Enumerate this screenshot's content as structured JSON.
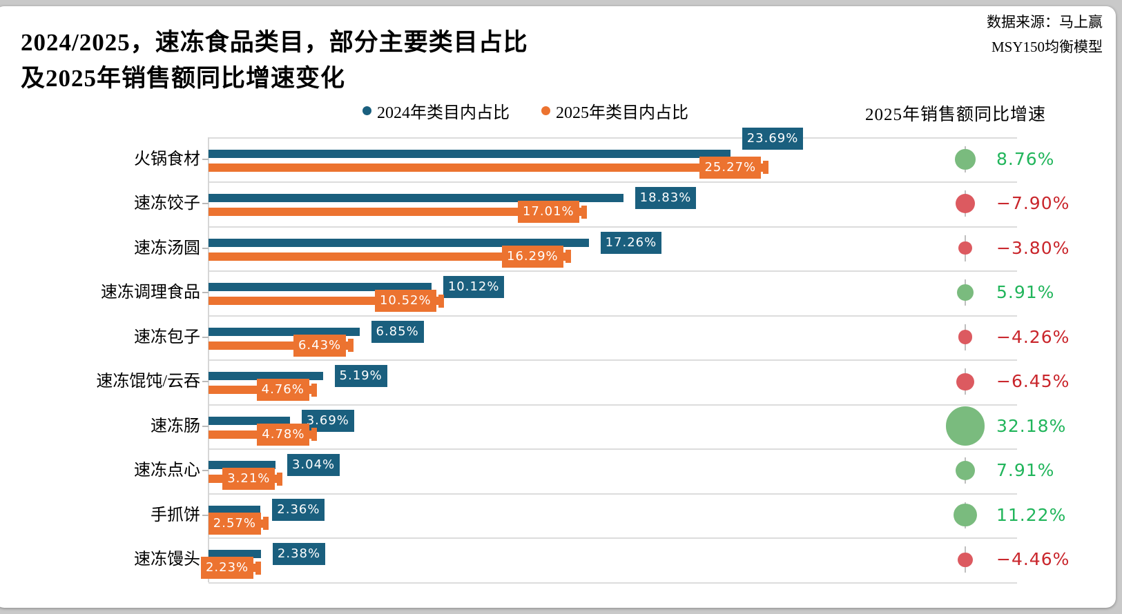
{
  "page": {
    "background": "#c9c9c9",
    "card_background": "#ffffff"
  },
  "header": {
    "title_line1": "2024/2025，速冻食品类目，部分主要类目占比",
    "title_line2": "及2025年销售额同比增速变化",
    "source_line1": "数据来源：马上赢",
    "source_line2": "MSY150均衡模型"
  },
  "legend": {
    "items": [
      {
        "label": "2024年类目内占比",
        "color": "#1a5f7e"
      },
      {
        "label": "2025年类目内占比",
        "color": "#ec7330"
      }
    ]
  },
  "growth_header": "2025年销售额同比增速",
  "colors": {
    "bar_2024": "#1a5f7e",
    "bar_2025": "#ec7330",
    "growth_positive_text": "#21b55b",
    "growth_negative_text": "#c9252b",
    "growth_positive_circle": "#7abb7e",
    "growth_negative_circle": "#dc5a60",
    "gridline": "#dcdcdc"
  },
  "chart_data": {
    "type": "bar",
    "orientation": "horizontal",
    "title": "2024/2025，速冻食品类目，部分主要类目占比及2025年销售额同比增速变化",
    "categories": [
      "火锅食材",
      "速冻饺子",
      "速冻汤圆",
      "速冻调理食品",
      "速冻包子",
      "速冻馄饨/云吞",
      "速冻肠",
      "速冻点心",
      "手抓饼",
      "速冻馒头"
    ],
    "series": [
      {
        "name": "2024年类目内占比",
        "color": "#1a5f7e",
        "values": [
          23.69,
          18.83,
          17.26,
          10.12,
          6.85,
          5.19,
          3.69,
          3.04,
          2.36,
          2.38
        ],
        "labels": [
          "23.69%",
          "18.83%",
          "17.26%",
          "10.12%",
          "6.85%",
          "5.19%",
          "3.69%",
          "3.04%",
          "2.36%",
          "2.38%"
        ]
      },
      {
        "name": "2025年类目内占比",
        "color": "#ec7330",
        "values": [
          25.27,
          17.01,
          16.29,
          10.52,
          6.43,
          4.76,
          4.78,
          3.21,
          2.57,
          2.23
        ],
        "labels": [
          "25.27%",
          "17.01%",
          "16.29%",
          "10.52%",
          "6.43%",
          "4.76%",
          "4.78%",
          "3.21%",
          "2.57%",
          "2.23%"
        ]
      }
    ],
    "growth_series": {
      "name": "2025年销售额同比增速",
      "values": [
        8.76,
        -7.9,
        -3.8,
        5.91,
        -4.26,
        -6.45,
        32.18,
        7.91,
        11.22,
        -4.46
      ],
      "labels": [
        "8.76%",
        "−7.90%",
        "−3.80%",
        "5.91%",
        "−4.26%",
        "−6.45%",
        "32.18%",
        "7.91%",
        "11.22%",
        "−4.46%"
      ]
    },
    "xlim": [
      0,
      36.7
    ],
    "grid": "horizontal-row-separators",
    "legend_position": "top-center",
    "value_labels": "boxed-at-bar-end"
  }
}
